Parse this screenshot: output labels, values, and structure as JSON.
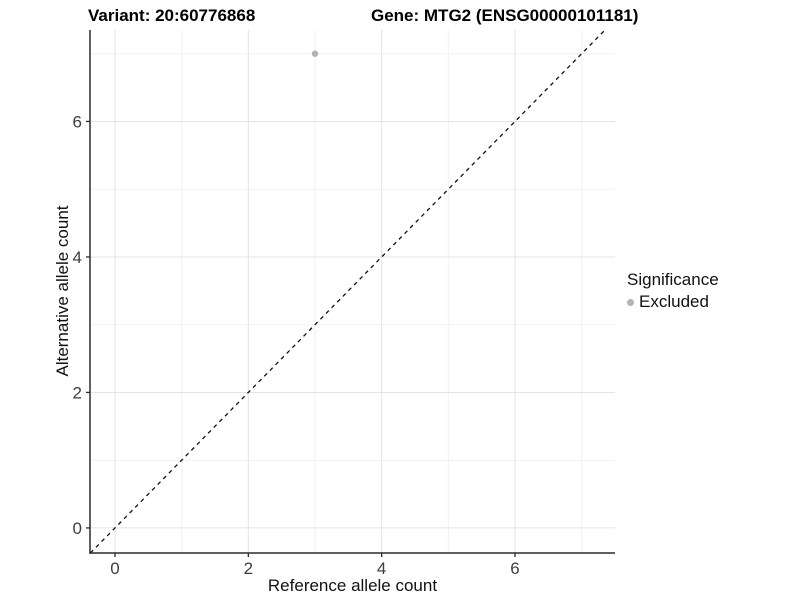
{
  "chart_data": {
    "type": "scatter",
    "title_left": "Variant: 20:60776868",
    "title_right": "Gene: MTG2 (ENSG00000101181)",
    "xlabel": "Reference allele count",
    "ylabel": "Alternative allele count",
    "xlim": [
      -0.375,
      7.5
    ],
    "ylim": [
      -0.37,
      7.35
    ],
    "x_ticks": [
      0,
      2,
      4,
      6
    ],
    "y_ticks": [
      0,
      2,
      4,
      6
    ],
    "x_minor_ticks": [
      1,
      3,
      5,
      7
    ],
    "y_minor_ticks": [
      1,
      3,
      5,
      7
    ],
    "grid": true,
    "legend_position": "right",
    "points": [
      {
        "x": 3,
        "y": 7,
        "series": "Excluded"
      }
    ],
    "reference_line": {
      "type": "identity",
      "style": "dashed",
      "from": [
        -0.37,
        -0.37
      ],
      "to": [
        7.35,
        7.35
      ]
    },
    "legend": {
      "title": "Significance",
      "entries": [
        {
          "label": "Excluded",
          "color": "#b3b3b3",
          "marker": "circle"
        }
      ]
    }
  },
  "colors": {
    "background": "#ffffff",
    "grid_major": "#e4e4e4",
    "grid_minor": "#f1f1f1",
    "axis_line": "#2b2b2b",
    "tick_label": "#3d3d3d",
    "ref_line": "#111111"
  }
}
